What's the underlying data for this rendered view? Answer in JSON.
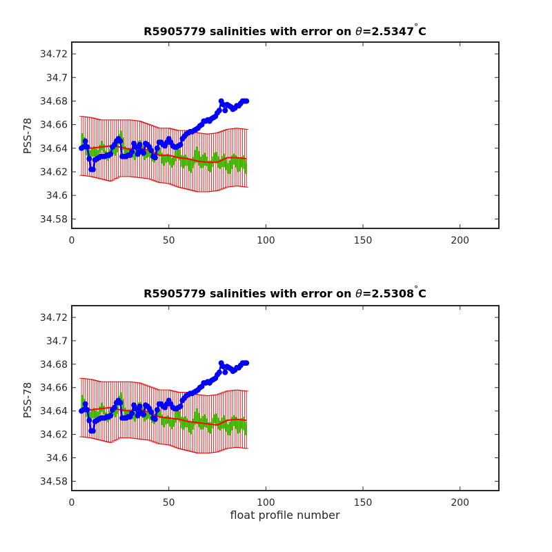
{
  "chart_data": [
    {
      "type": "line",
      "title_prefix": "R5905779 salinities with error on ",
      "title_theta": "θ",
      "title_suffix": "=2.5347",
      "title_degree": "°",
      "title_unit": "C",
      "xlabel": "",
      "ylabel": "PSS-78",
      "xlim": [
        0,
        220
      ],
      "ylim": [
        34.572,
        34.73
      ],
      "xticks": [
        0,
        50,
        100,
        150,
        200
      ],
      "yticks": [
        34.58,
        34.6,
        34.62,
        34.64,
        34.66,
        34.68,
        34.7,
        34.72
      ],
      "ytick_labels": [
        "34.58",
        "34.6",
        "34.62",
        "34.64",
        "34.66",
        "34.68",
        "34.7",
        "34.72"
      ],
      "xtick_labels": [
        "0",
        "50",
        "100",
        "150",
        "200"
      ],
      "grid": false,
      "series": [
        {
          "role": "mapped-salinity-red",
          "color": "#ff0000",
          "x": [
            5,
            10,
            15,
            20,
            25,
            30,
            35,
            40,
            45,
            50,
            55,
            60,
            65,
            70,
            75,
            80,
            85,
            90
          ],
          "y": [
            34.641,
            34.64,
            34.641,
            34.642,
            34.641,
            34.639,
            34.64,
            34.638,
            34.634,
            34.634,
            34.632,
            34.631,
            34.629,
            34.628,
            34.628,
            34.632,
            34.632,
            34.631
          ]
        },
        {
          "role": "mapped-error-bars",
          "color": "#e00000",
          "x": [
            5,
            10,
            15,
            20,
            25,
            30,
            35,
            40,
            45,
            50,
            55,
            60,
            65,
            70,
            75,
            80,
            85,
            90
          ],
          "lower": [
            34.617,
            34.616,
            34.614,
            34.612,
            34.616,
            34.616,
            34.615,
            34.614,
            34.611,
            34.61,
            34.607,
            34.605,
            34.603,
            34.603,
            34.604,
            34.607,
            34.608,
            34.607
          ],
          "upper": [
            34.667,
            34.666,
            34.664,
            34.664,
            34.664,
            34.664,
            34.663,
            34.66,
            34.657,
            34.657,
            34.655,
            34.655,
            34.653,
            34.652,
            34.653,
            34.656,
            34.657,
            34.656
          ]
        },
        {
          "role": "green-band",
          "color": "#3cb400",
          "x": [
            5,
            10,
            15,
            20,
            25,
            30,
            35,
            40,
            45,
            50,
            55,
            60,
            65,
            70,
            75,
            80,
            85,
            90
          ],
          "y": [
            34.646,
            34.633,
            34.64,
            34.634,
            34.648,
            34.633,
            34.641,
            34.633,
            34.636,
            34.628,
            34.635,
            34.625,
            34.633,
            34.626,
            34.631,
            34.625,
            34.629,
            34.624
          ],
          "half_width": [
            0.006,
            0.005,
            0.004,
            0.004,
            0.006,
            0.004,
            0.005,
            0.004,
            0.005,
            0.004,
            0.006,
            0.005,
            0.007,
            0.005,
            0.005,
            0.006,
            0.006,
            0.006
          ]
        },
        {
          "role": "float-salinity-blue",
          "color": "#0000ff",
          "x": [
            5,
            6,
            7,
            8,
            9,
            10,
            11,
            12,
            13,
            14,
            15,
            16,
            17,
            18,
            19,
            20,
            21,
            22,
            23,
            24,
            25,
            26,
            27,
            28,
            29,
            30,
            31,
            32,
            33,
            34,
            35,
            36,
            37,
            38,
            39,
            40,
            41,
            42,
            43,
            44,
            45,
            46,
            47,
            48,
            49,
            50,
            51,
            52,
            53,
            54,
            55,
            56,
            57,
            58,
            59,
            60,
            61,
            62,
            63,
            64,
            65,
            66,
            67,
            68,
            69,
            70,
            71,
            72,
            73,
            74,
            75,
            76,
            77,
            78,
            79,
            80,
            81,
            82,
            83,
            84,
            85,
            86,
            87,
            88,
            89,
            90
          ],
          "y": [
            34.64,
            34.641,
            34.646,
            34.641,
            34.631,
            34.622,
            34.622,
            34.63,
            34.631,
            34.632,
            34.633,
            34.633,
            34.633,
            34.634,
            34.634,
            34.635,
            34.641,
            34.643,
            34.646,
            34.648,
            34.646,
            34.633,
            34.633,
            34.633,
            34.634,
            34.634,
            34.637,
            34.644,
            34.641,
            34.635,
            34.643,
            34.637,
            34.636,
            34.644,
            34.643,
            34.641,
            34.638,
            34.633,
            34.632,
            34.64,
            34.645,
            34.645,
            34.643,
            34.642,
            34.645,
            34.648,
            34.645,
            34.642,
            34.641,
            34.641,
            34.642,
            34.643,
            34.648,
            34.65,
            34.652,
            34.653,
            34.654,
            34.654,
            34.655,
            34.656,
            34.657,
            34.659,
            34.66,
            34.663,
            34.663,
            34.664,
            34.663,
            34.665,
            34.666,
            34.667,
            34.67,
            34.672,
            34.68,
            34.677,
            34.672,
            34.677,
            34.676,
            34.675,
            34.673,
            34.674,
            34.676,
            34.676,
            34.678,
            34.68,
            34.68,
            34.68
          ]
        }
      ]
    },
    {
      "type": "line",
      "title_prefix": "R5905779 salinities with error on ",
      "title_theta": "θ",
      "title_suffix": "=2.5308",
      "title_degree": "°",
      "title_unit": "C",
      "xlabel": "float profile number",
      "ylabel": "PSS-78",
      "xlim": [
        0,
        220
      ],
      "ylim": [
        34.572,
        34.73
      ],
      "xticks": [
        0,
        50,
        100,
        150,
        200
      ],
      "yticks": [
        34.58,
        34.6,
        34.62,
        34.64,
        34.66,
        34.68,
        34.7,
        34.72
      ],
      "ytick_labels": [
        "34.58",
        "34.6",
        "34.62",
        "34.64",
        "34.66",
        "34.68",
        "34.7",
        "34.72"
      ],
      "xtick_labels": [
        "0",
        "50",
        "100",
        "150",
        "200"
      ],
      "grid": false,
      "series": [
        {
          "role": "mapped-salinity-red",
          "color": "#ff0000",
          "x": [
            5,
            10,
            15,
            20,
            25,
            30,
            35,
            40,
            45,
            50,
            55,
            60,
            65,
            70,
            75,
            80,
            85,
            90
          ],
          "y": [
            34.642,
            34.641,
            34.642,
            34.643,
            34.641,
            34.64,
            34.641,
            34.639,
            34.635,
            34.634,
            34.633,
            34.631,
            34.63,
            34.629,
            34.628,
            34.632,
            34.633,
            34.632
          ]
        },
        {
          "role": "mapped-error-bars",
          "color": "#e00000",
          "x": [
            5,
            10,
            15,
            20,
            25,
            30,
            35,
            40,
            45,
            50,
            55,
            60,
            65,
            70,
            75,
            80,
            85,
            90
          ],
          "lower": [
            34.618,
            34.617,
            34.615,
            34.613,
            34.617,
            34.617,
            34.616,
            34.615,
            34.612,
            34.611,
            34.608,
            34.606,
            34.604,
            34.604,
            34.605,
            34.608,
            34.609,
            34.608
          ],
          "upper": [
            34.668,
            34.667,
            34.665,
            34.665,
            34.665,
            34.665,
            34.664,
            34.661,
            34.658,
            34.658,
            34.656,
            34.656,
            34.654,
            34.653,
            34.654,
            34.657,
            34.658,
            34.657
          ]
        },
        {
          "role": "green-band",
          "color": "#3cb400",
          "x": [
            5,
            10,
            15,
            20,
            25,
            30,
            35,
            40,
            45,
            50,
            55,
            60,
            65,
            70,
            75,
            80,
            85,
            90
          ],
          "y": [
            34.647,
            34.634,
            34.641,
            34.635,
            34.649,
            34.634,
            34.642,
            34.634,
            34.637,
            34.629,
            34.636,
            34.626,
            34.634,
            34.627,
            34.632,
            34.626,
            34.63,
            34.625
          ],
          "half_width": [
            0.006,
            0.005,
            0.004,
            0.004,
            0.006,
            0.004,
            0.005,
            0.004,
            0.005,
            0.004,
            0.006,
            0.005,
            0.007,
            0.005,
            0.005,
            0.006,
            0.006,
            0.006
          ]
        },
        {
          "role": "float-salinity-blue",
          "color": "#0000ff",
          "x": [
            5,
            6,
            7,
            8,
            9,
            10,
            11,
            12,
            13,
            14,
            15,
            16,
            17,
            18,
            19,
            20,
            21,
            22,
            23,
            24,
            25,
            26,
            27,
            28,
            29,
            30,
            31,
            32,
            33,
            34,
            35,
            36,
            37,
            38,
            39,
            40,
            41,
            42,
            43,
            44,
            45,
            46,
            47,
            48,
            49,
            50,
            51,
            52,
            53,
            54,
            55,
            56,
            57,
            58,
            59,
            60,
            61,
            62,
            63,
            64,
            65,
            66,
            67,
            68,
            69,
            70,
            71,
            72,
            73,
            74,
            75,
            76,
            77,
            78,
            79,
            80,
            81,
            82,
            83,
            84,
            85,
            86,
            87,
            88,
            89,
            90
          ],
          "y": [
            34.64,
            34.641,
            34.646,
            34.641,
            34.632,
            34.623,
            34.623,
            34.631,
            34.632,
            34.633,
            34.634,
            34.634,
            34.634,
            34.635,
            34.635,
            34.636,
            34.641,
            34.643,
            34.647,
            34.649,
            34.647,
            34.634,
            34.634,
            34.634,
            34.635,
            34.635,
            34.638,
            34.645,
            34.642,
            34.636,
            34.644,
            34.638,
            34.637,
            34.645,
            34.644,
            34.642,
            34.639,
            34.634,
            34.633,
            34.641,
            34.646,
            34.646,
            34.644,
            34.643,
            34.646,
            34.649,
            34.646,
            34.643,
            34.642,
            34.642,
            34.643,
            34.644,
            34.649,
            34.651,
            34.653,
            34.654,
            34.655,
            34.655,
            34.656,
            34.657,
            34.658,
            34.66,
            34.661,
            34.664,
            34.664,
            34.665,
            34.664,
            34.666,
            34.667,
            34.668,
            34.671,
            34.673,
            34.681,
            34.678,
            34.673,
            34.678,
            34.677,
            34.676,
            34.674,
            34.675,
            34.677,
            34.677,
            34.679,
            34.681,
            34.681,
            34.681
          ]
        }
      ]
    }
  ]
}
